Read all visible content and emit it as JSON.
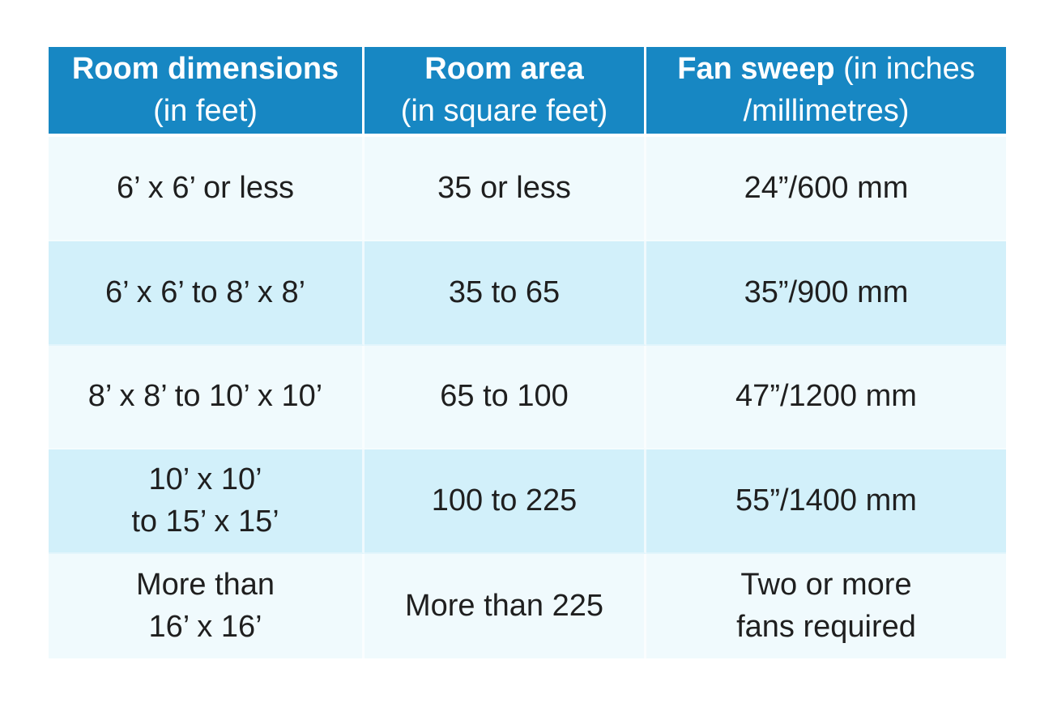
{
  "colors": {
    "header_bg": "#1787C3",
    "header_text": "#FFFFFF",
    "row_light": "#F0FAFD",
    "row_dark": "#D2F0FA",
    "cell_text": "#1F1F1F"
  },
  "table": {
    "headers": [
      {
        "line1_bold": "Room dimensions",
        "line1_rest": "",
        "line2": "(in feet)"
      },
      {
        "line1_bold": "Room area",
        "line1_rest": "",
        "line2": "(in square feet)"
      },
      {
        "line1_bold": "Fan sweep",
        "line1_rest": " (in inches",
        "line2": "/millimetres)"
      }
    ],
    "rows": [
      {
        "dimensions": "6’ x 6’ or less",
        "area": "35 or less",
        "sweep": "24”/600 mm"
      },
      {
        "dimensions": "6’ x 6’ to 8’ x 8’",
        "area": "35 to 65",
        "sweep": "35”/900 mm"
      },
      {
        "dimensions": "8’ x 8’ to 10’ x 10’",
        "area": "65 to 100",
        "sweep": "47”/1200 mm"
      },
      {
        "dimensions": "10’ x 10’\nto 15’ x 15’",
        "area": "100 to 225",
        "sweep": "55”/1400 mm"
      },
      {
        "dimensions": "More than\n16’ x 16’",
        "area": "More than 225",
        "sweep": "Two or more\nfans required"
      }
    ]
  },
  "chart_data": {
    "type": "table",
    "title": "",
    "columns": [
      "Room dimensions (in feet)",
      "Room area (in square feet)",
      "Fan sweep (in inches /millimetres)"
    ],
    "rows": [
      [
        "6’ x 6’ or less",
        "35 or less",
        "24”/600 mm"
      ],
      [
        "6’ x 6’ to 8’ x 8’",
        "35 to 65",
        "35”/900 mm"
      ],
      [
        "8’ x 8’ to 10’ x 10’",
        "65 to 100",
        "47”/1200 mm"
      ],
      [
        "10’ x 10’ to 15’ x 15’",
        "100 to 225",
        "55”/1400 mm"
      ],
      [
        "More than 16’ x 16’",
        "More than 225",
        "Two or more fans required"
      ]
    ]
  }
}
